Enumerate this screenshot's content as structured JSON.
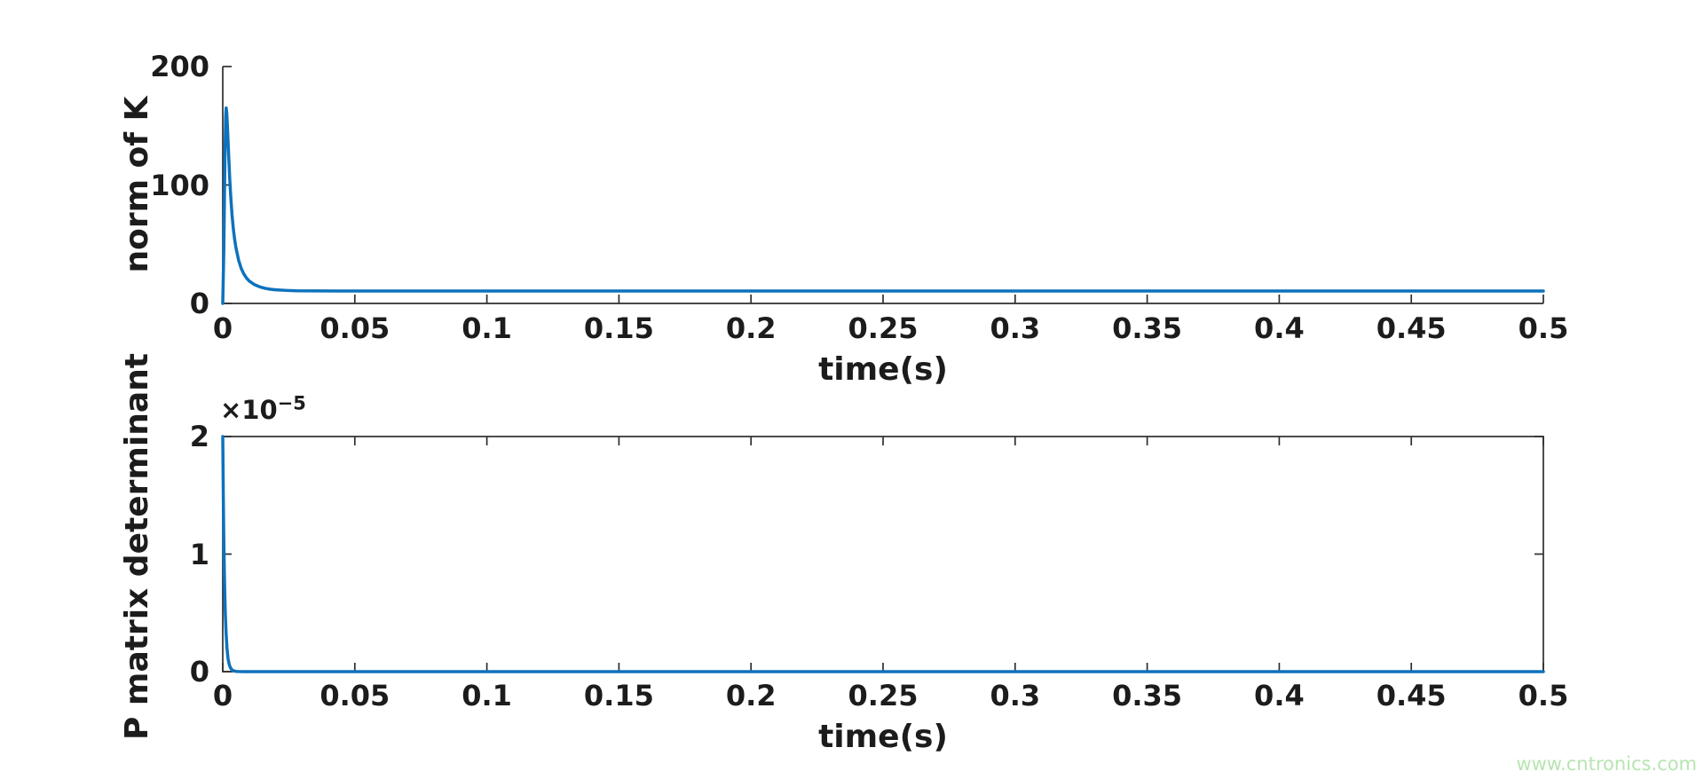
{
  "figure": {
    "background": "#ffffff"
  },
  "palette": {
    "line_blue": "#0d72bd",
    "axis_color": "#2e2e2e",
    "text_color": "#1c1c1c",
    "watermark_green": "#b7e5b1"
  },
  "watermark": {
    "text": "www.cntronics.com"
  },
  "chart_data": [
    {
      "type": "line",
      "title": "",
      "xlabel": "time(s)",
      "ylabel": "norm of K",
      "xlim": [
        0,
        0.5
      ],
      "ylim": [
        0,
        200
      ],
      "xticks": [
        0,
        0.05,
        0.1,
        0.15,
        0.2,
        0.25,
        0.3,
        0.35,
        0.4,
        0.45,
        0.5
      ],
      "xtick_labels": [
        "0",
        "0.05",
        "0.1",
        "0.15",
        "0.2",
        "0.25",
        "0.3",
        "0.35",
        "0.4",
        "0.45",
        "0.5"
      ],
      "yticks": [
        0,
        100,
        200
      ],
      "ytick_labels": [
        "0",
        "100",
        "200"
      ],
      "box": false,
      "grid": false,
      "legend": null,
      "series": [
        {
          "name": "norm of K",
          "color": "#0d72bd",
          "x": [
            0,
            0.0004,
            0.0008,
            0.0011,
            0.0013,
            0.0015,
            0.0018,
            0.0022,
            0.0026,
            0.003,
            0.0035,
            0.004,
            0.0045,
            0.005,
            0.006,
            0.007,
            0.008,
            0.009,
            0.01,
            0.012,
            0.014,
            0.016,
            0.018,
            0.02,
            0.024,
            0.028,
            0.035,
            0.045,
            0.06,
            0.08,
            0.1,
            0.15,
            0.2,
            0.25,
            0.3,
            0.35,
            0.4,
            0.45,
            0.5
          ],
          "y": [
            0,
            45,
            120,
            158,
            165,
            161,
            148,
            127,
            107,
            91,
            75,
            63,
            54,
            47,
            36.5,
            29.5,
            24.8,
            21.4,
            19,
            15.9,
            14,
            12.8,
            12,
            11.5,
            11,
            10.7,
            10.6,
            10.5,
            10.5,
            10.5,
            10.5,
            10.5,
            10.5,
            10.5,
            10.5,
            10.5,
            10.5,
            10.5,
            10.5
          ]
        }
      ],
      "annotations": {
        "peak_value": 165,
        "peak_time": 0.0013,
        "steady_state": 10.5
      }
    },
    {
      "type": "line",
      "title": "",
      "xlabel": "time(s)",
      "ylabel": "P matrix determinant",
      "y_exponent_prefix": "×10",
      "y_exponent": "−5",
      "xlim": [
        0,
        0.5
      ],
      "ylim": [
        0,
        2e-05
      ],
      "xticks": [
        0,
        0.05,
        0.1,
        0.15,
        0.2,
        0.25,
        0.3,
        0.35,
        0.4,
        0.45,
        0.5
      ],
      "xtick_labels": [
        "0",
        "0.05",
        "0.1",
        "0.15",
        "0.2",
        "0.25",
        "0.3",
        "0.35",
        "0.4",
        "0.45",
        "0.5"
      ],
      "yticks": [
        0,
        1e-05,
        2e-05
      ],
      "ytick_labels": [
        "0",
        "1",
        "2"
      ],
      "box": true,
      "grid": false,
      "legend": null,
      "series": [
        {
          "name": "P matrix determinant",
          "color": "#0d72bd",
          "x": [
            0,
            0.0002,
            0.0004,
            0.0006,
            0.0008,
            0.001,
            0.0013,
            0.0016,
            0.002,
            0.0025,
            0.003,
            0.0035,
            0.004,
            0.005,
            0.006,
            0.008,
            0.01,
            0.02,
            0.05,
            0.1,
            0.15,
            0.2,
            0.25,
            0.3,
            0.35,
            0.4,
            0.45,
            0.5
          ],
          "y": [
            2e-05,
            1.5e-05,
            1.12e-05,
            8.4e-06,
            6.3e-06,
            4.7e-06,
            3.1e-06,
            2e-06,
            1.1e-06,
            5.6e-07,
            2.9e-07,
            1.5e-07,
            8e-08,
            2e-08,
            8e-09,
            3e-09,
            2e-09,
            2e-09,
            2e-09,
            2e-09,
            2e-09,
            2e-09,
            2e-09,
            2e-09,
            2e-09,
            2e-09,
            2e-09,
            2e-09
          ]
        }
      ],
      "annotations": {
        "initial_value": 2e-05,
        "steady_state": 0
      }
    }
  ]
}
